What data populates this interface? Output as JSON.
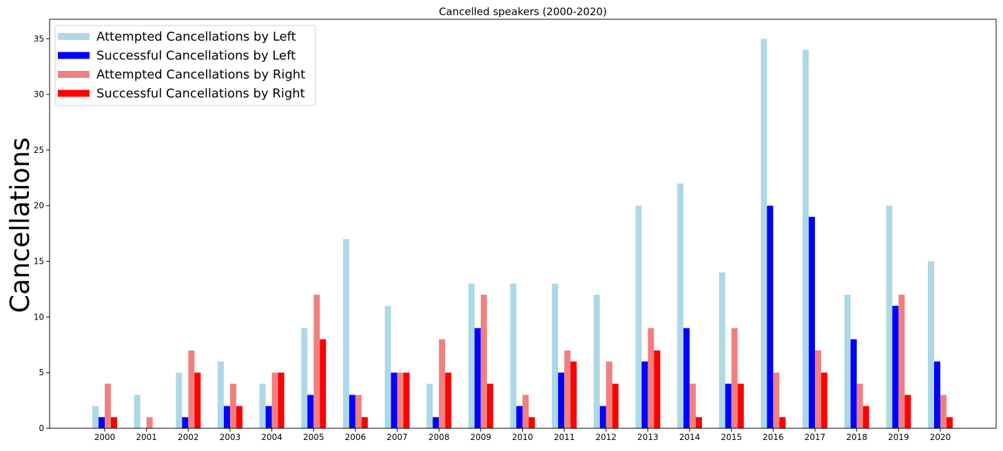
{
  "chart_data": {
    "type": "bar",
    "title": "Cancelled speakers (2000-2020)",
    "xlabel": "",
    "ylabel": "Cancellations",
    "ylim": [
      0,
      36.75
    ],
    "yticks": [
      0,
      5,
      10,
      15,
      20,
      25,
      30,
      35
    ],
    "grid": false,
    "legend_position": "top-left",
    "categories": [
      "2000",
      "2001",
      "2002",
      "2003",
      "2004",
      "2005",
      "2006",
      "2007",
      "2008",
      "2009",
      "2010",
      "2011",
      "2012",
      "2013",
      "2014",
      "2015",
      "2016",
      "2017",
      "2018",
      "2019",
      "2020"
    ],
    "series": [
      {
        "name": "Attempted Cancellations by Left",
        "color": "#add8e6",
        "values": [
          2,
          3,
          5,
          6,
          4,
          9,
          17,
          11,
          4,
          13,
          13,
          13,
          12,
          20,
          22,
          14,
          35,
          34,
          12,
          20,
          15
        ]
      },
      {
        "name": "Successful Cancellations by Left",
        "color": "#0000ff",
        "values": [
          1,
          0,
          1,
          2,
          2,
          3,
          3,
          5,
          1,
          9,
          2,
          5,
          2,
          6,
          9,
          4,
          20,
          19,
          8,
          11,
          6
        ]
      },
      {
        "name": "Attempted Cancellations by Right",
        "color": "#f08080",
        "values": [
          4,
          1,
          7,
          4,
          5,
          12,
          3,
          5,
          8,
          12,
          3,
          7,
          6,
          9,
          4,
          9,
          5,
          7,
          4,
          12,
          3
        ]
      },
      {
        "name": "Successful Cancellations by Right",
        "color": "#ff0000",
        "values": [
          1,
          0,
          5,
          2,
          5,
          8,
          1,
          5,
          5,
          4,
          1,
          6,
          4,
          7,
          1,
          4,
          1,
          5,
          2,
          3,
          1
        ]
      }
    ]
  }
}
